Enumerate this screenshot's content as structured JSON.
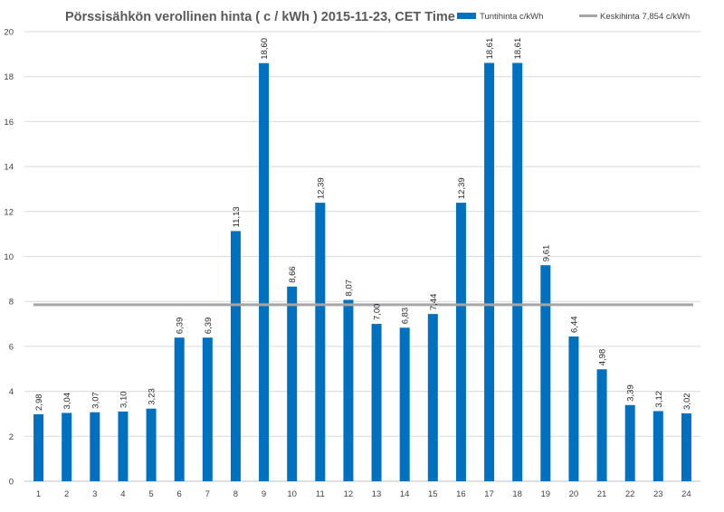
{
  "chart_data": {
    "type": "bar",
    "title": "Pörssisähkön verollinen hinta ( c / kWh ) 2015-11-23, CET Time",
    "categories": [
      "1",
      "2",
      "3",
      "4",
      "5",
      "6",
      "7",
      "8",
      "9",
      "10",
      "11",
      "12",
      "13",
      "14",
      "15",
      "16",
      "17",
      "18",
      "19",
      "20",
      "21",
      "22",
      "23",
      "24"
    ],
    "series": [
      {
        "name": "Tuntihinta c/kWh",
        "color": "#0070C0",
        "values": [
          2.98,
          3.04,
          3.07,
          3.1,
          3.23,
          6.39,
          6.39,
          11.13,
          18.6,
          8.66,
          12.39,
          8.07,
          7.0,
          6.83,
          7.44,
          12.39,
          18.61,
          18.61,
          9.61,
          6.44,
          4.98,
          3.39,
          3.12,
          3.02
        ],
        "labels": [
          "2,98",
          "3,04",
          "3,07",
          "3,10",
          "3,23",
          "6,39",
          "6,39",
          "11,13",
          "18,60",
          "8,66",
          "12,39",
          "8,07",
          "7,00",
          "6,83",
          "7,44",
          "12,39",
          "18,61",
          "18,61",
          "9,61",
          "6,44",
          "4,98",
          "3,39",
          "3,12",
          "3,02"
        ]
      }
    ],
    "reference_line": {
      "name": "Keskihinta 7,854 c/kWh",
      "value": 7.854,
      "color": "#A6A6A6"
    },
    "ylim": [
      0,
      20
    ],
    "yticks": [
      "0",
      "2",
      "4",
      "6",
      "8",
      "10",
      "12",
      "14",
      "16",
      "18",
      "20"
    ],
    "grid": true,
    "legend_position": "top-right"
  }
}
